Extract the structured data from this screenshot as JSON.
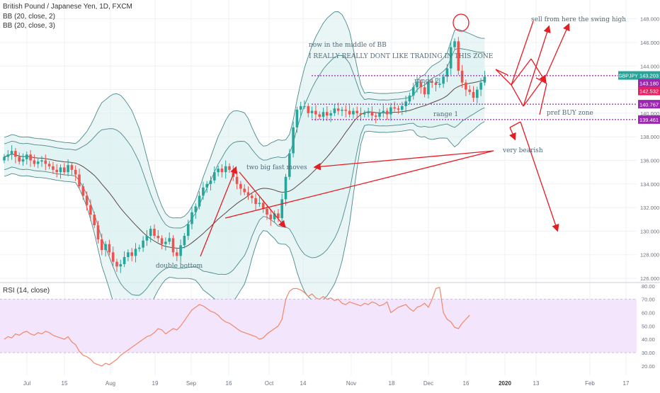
{
  "header": {
    "symbol_line": "British Pound / Japanese Yen, 1D, FXCM",
    "bb1": "BB (20, close, 2)",
    "bb2": "BB (20, close, 3)",
    "rsi_label": "RSI (14, close)"
  },
  "colors": {
    "up": "#26a69a",
    "down": "#ef5350",
    "bb_fill": "#d9efef",
    "bb_line": "#4a8a8e",
    "mid_line": "#5a4a44",
    "drawing_red": "#e81b23",
    "purple_line": "#9c27b0",
    "rsi_line": "#f2886b",
    "rsi_band": "#f3e5fb",
    "annotation": "#4e6b7c"
  },
  "chart_data": [
    {
      "type": "candlestick",
      "symbol": "GBPJPY",
      "x_axis_labels": [
        "Jul",
        "15",
        "Aug",
        "19",
        "Sep",
        "16",
        "Oct",
        "14",
        "Nov",
        "18",
        "Dec",
        "16",
        "2020",
        "13",
        "Feb",
        "17"
      ],
      "y_axis_labels": [
        "148.000",
        "146.000",
        "144.000",
        "142.000",
        "140.000",
        "138.000",
        "136.000",
        "134.000",
        "132.000",
        "130.000",
        "128.000",
        "126.000"
      ],
      "ylim": [
        125.7,
        149.6
      ],
      "close_path": [
        136.3,
        136.5,
        136.8,
        136.3,
        135.9,
        136.1,
        136.5,
        136.0,
        135.7,
        135.9,
        136.0,
        135.7,
        135.5,
        135.2,
        135.0,
        135.4,
        135.0,
        135.6,
        135.2,
        134.8,
        133.8,
        133.0,
        132.2,
        131.4,
        130.5,
        129.3,
        128.4,
        128.9,
        128.2,
        127.4,
        127.0,
        127.2,
        127.8,
        128.2,
        127.9,
        128.5,
        128.6,
        129.2,
        129.6,
        130.2,
        129.6,
        129.4,
        128.9,
        129.1,
        129.4,
        128.2,
        127.9,
        128.8,
        129.6,
        130.6,
        131.6,
        132.1,
        133.0,
        133.7,
        134.0,
        134.3,
        135.0,
        135.3,
        135.0,
        135.5,
        135.2,
        134.6,
        134.0,
        133.6,
        133.3,
        133.0,
        132.8,
        132.3,
        132.4,
        131.9,
        131.4,
        131.0,
        131.5,
        131.1,
        132.7,
        134.6,
        136.6,
        138.8,
        140.3,
        140.6,
        140.6,
        140.0,
        140.2,
        139.9,
        139.7,
        140.1,
        139.8,
        140.0,
        140.4,
        140.2,
        140.3,
        140.2,
        139.9,
        140.2,
        140.0,
        139.9,
        140.0,
        140.1,
        139.8,
        139.7,
        140.0,
        140.2,
        139.9,
        140.5,
        140.4,
        140.3,
        140.6,
        141.0,
        141.5,
        142.2,
        142.6,
        142.2,
        141.6,
        142.7,
        142.6,
        142.4,
        142.5,
        143.1,
        143.8,
        145.6,
        146.1,
        143.6,
        142.6,
        142.0,
        141.8,
        141.3,
        142.0,
        142.6,
        143.1
      ],
      "annotations": [
        "now in the middle of BB",
        "I REALLY REALLY DONT LIKE TRADING IN THIS ZONE",
        "sell from here the swing high",
        "range 2",
        "range 1",
        "pref BUY zone",
        "very bearish",
        "two big fast moves",
        "double bottom"
      ],
      "price_tags": [
        {
          "label": "GBPJPY",
          "value": "143.203",
          "color": "#26a69a",
          "price": 143.203
        },
        {
          "label": "",
          "value": "143.180",
          "color": "#9c27b0",
          "price": 143.18
        },
        {
          "label": "",
          "value": "142.532",
          "color": "#e91e63",
          "price": 142.532
        },
        {
          "label": "",
          "value": "140.767",
          "color": "#9c27b0",
          "price": 140.767
        },
        {
          "label": "",
          "value": "139.461",
          "color": "#9c27b0",
          "price": 139.461
        }
      ]
    },
    {
      "type": "line",
      "name": "RSI (14, close)",
      "y_axis_labels": [
        "80.00",
        "70.00",
        "60.00",
        "50.00",
        "40.00",
        "30.00",
        "20.00"
      ],
      "ylim": [
        13,
        82
      ],
      "band": [
        30,
        70
      ],
      "values": [
        40,
        42,
        41,
        44,
        43,
        45,
        46,
        44,
        43,
        45,
        44,
        46,
        45,
        43,
        42,
        41,
        40,
        42,
        38,
        36,
        31,
        28,
        27,
        25,
        22,
        21,
        20,
        22,
        21,
        23,
        25,
        28,
        30,
        32,
        34,
        36,
        38,
        40,
        42,
        43,
        45,
        48,
        47,
        44,
        46,
        48,
        47,
        50,
        54,
        58,
        62,
        64,
        66,
        65,
        63,
        61,
        60,
        58,
        55,
        53,
        52,
        50,
        48,
        46,
        45,
        44,
        43,
        42,
        40,
        41,
        44,
        46,
        48,
        50,
        55,
        70,
        76,
        78,
        78,
        77,
        75,
        72,
        74,
        71,
        70,
        72,
        70,
        71,
        69,
        70,
        67,
        66,
        68,
        67,
        66,
        65,
        67,
        66,
        68,
        67,
        65,
        66,
        68,
        60,
        62,
        64,
        65,
        66,
        63,
        61,
        64,
        65,
        67,
        64,
        70,
        78,
        79,
        60,
        55,
        53,
        49,
        48,
        52,
        55,
        58
      ]
    }
  ]
}
